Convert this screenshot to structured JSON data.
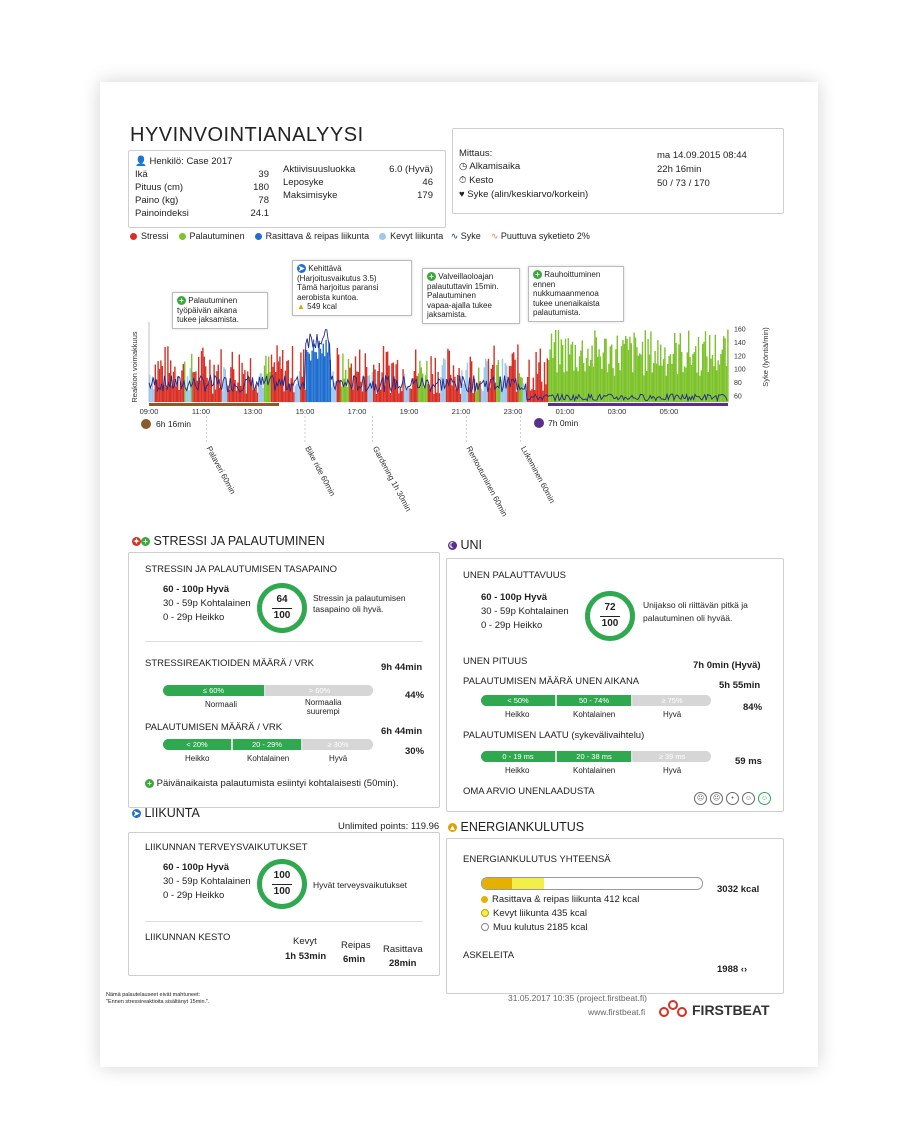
{
  "title": "HYVINVOINTIANALYYSI",
  "person": {
    "name_label": "Henkilö: Case 2017",
    "rows": [
      {
        "label": "Ikä",
        "value": "39"
      },
      {
        "label": "Pituus (cm)",
        "value": "180"
      },
      {
        "label": "Paino (kg)",
        "value": "78"
      },
      {
        "label": "Painoindeksi",
        "value": "24.1"
      }
    ],
    "rows2": [
      {
        "label": "Aktiivisuusluokka",
        "value": "6.0 (Hyvä)"
      },
      {
        "label": "Leposyke",
        "value": "46"
      },
      {
        "label": "Maksimisyke",
        "value": "179"
      }
    ]
  },
  "measurement": {
    "header": "Mittaus:",
    "labels": [
      "Alkamisaika",
      "Kesto",
      "Syke (alin/keskiarvo/korkein)"
    ],
    "values": [
      "ma 14.09.2015 08:44",
      "22h 16min",
      "50 / 73 / 170"
    ]
  },
  "legend": {
    "stress": "Stressi",
    "recovery": "Palautuminen",
    "heavy": "Rasittava & reipas liikunta",
    "light": "Kevyt liikunta",
    "hr": "Syke",
    "missing": "Puuttuva syketieto 2%"
  },
  "colors": {
    "stress": "#d93025",
    "recovery": "#7cc22a",
    "heavy": "#1f6fd1",
    "light": "#9cc7ef",
    "hr": "#1f2a8a",
    "good": "#2fa84f",
    "sleep": "#5a2f8c"
  },
  "callouts": [
    {
      "lines": [
        "Palautuminen",
        "työpäivän aikana",
        "tukee jaksamista."
      ]
    },
    {
      "lines": [
        "Kehittävä",
        "(Harjoitusvaikutus 3.5)",
        "Tämä harjoitus paransi",
        "aerobista kuntoa.",
        "549 kcal"
      ]
    },
    {
      "lines": [
        "Valveillaoloajan",
        "palaututtavin 15min.",
        "Palautuminen",
        "vapaa-ajalla tukee",
        "jaksamista."
      ]
    },
    {
      "lines": [
        "Rauhoittuminen",
        "ennen",
        "nukkumaanmenoa",
        "tukee unenaikaista",
        "palautumista."
      ]
    }
  ],
  "chart_data": {
    "type": "bar",
    "ylabel_left": "Reaktion voimakkuus",
    "ylabel_right": "Syke (lyöntiä/min)",
    "y_right_ticks": [
      60,
      80,
      100,
      120,
      140,
      160
    ],
    "x_ticks": [
      "09:00",
      "11:00",
      "13:00",
      "15:00",
      "17:00",
      "19:00",
      "21:00",
      "23:00",
      "01:00",
      "03:00",
      "05:00"
    ],
    "work_duration": "6h 16min",
    "sleep_duration": "7h 0min",
    "events": [
      "Palaveri 60min",
      "Bike ride 60min",
      "Gardening 1h 30min",
      "Rentoutuminen 60min",
      "Lukeminen 60min"
    ],
    "segments": [
      {
        "state": "stress",
        "from": "09:00",
        "to": "15:00"
      },
      {
        "state": "heavy",
        "from": "15:00",
        "to": "16:00"
      },
      {
        "state": "stress",
        "from": "16:00",
        "to": "21:00"
      },
      {
        "state": "recovery",
        "from": "21:00",
        "to": "23:30"
      },
      {
        "state": "recovery",
        "from": "23:30",
        "to": "07:00"
      }
    ]
  },
  "stress": {
    "section": "STRESSI JA PALAUTUMINEN",
    "balance_title": "STRESSIN JA PALAUTUMISEN TASAPAINO",
    "scale": [
      "60 - 100p Hyvä",
      "30 - 59p Kohtalainen",
      "0 - 29p Heikko"
    ],
    "score": "64",
    "max": "100",
    "score_text": [
      "Stressin ja palautumisen",
      "tasapaino oli hyvä."
    ],
    "reactions_title": "STRESSIREAKTIOIDEN MÄÄRÄ / VRK",
    "reactions_value": "9h 44min",
    "reactions_pct": "44%",
    "reactions_segs": [
      "≤ 60%",
      "> 60%"
    ],
    "reactions_labels": [
      "Normaali",
      "Normaalia",
      "suurempi"
    ],
    "recovery_title": "PALAUTUMISEN MÄÄRÄ / VRK",
    "recovery_value": "6h 44min",
    "recovery_pct": "30%",
    "recovery_segs": [
      "< 20%",
      "20 - 29%",
      "≥ 30%"
    ],
    "recovery_labels": [
      "Heikko",
      "Kohtalainen",
      "Hyvä"
    ],
    "note": "Päivänaikaista palautumista esiintyi kohtalaisesti (50min)."
  },
  "sleep": {
    "section": "UNI",
    "restore_title": "UNEN PALAUTTAVUUS",
    "scale": [
      "60 - 100p Hyvä",
      "30 - 59p Kohtalainen",
      "0 - 29p Heikko"
    ],
    "score": "72",
    "max": "100",
    "score_text": [
      "Unijakso oli riittävän pitkä ja",
      "palautuminen oli hyvää."
    ],
    "length_title": "UNEN PITUUS",
    "length_value": "7h 0min (Hyvä)",
    "amount_title": "PALAUTUMISEN MÄÄRÄ UNEN AIKANA",
    "amount_value": "5h 55min",
    "amount_pct": "84%",
    "amount_segs": [
      "< 50%",
      "50 - 74%",
      "≥ 75%"
    ],
    "labels": [
      "Heikko",
      "Kohtalainen",
      "Hyvä"
    ],
    "quality_title": "PALAUTUMISEN LAATU (sykevälivaihtelu)",
    "quality_value": "59 ms",
    "quality_segs": [
      "0 - 19 ms",
      "20 - 38 ms",
      "≥ 39 ms"
    ],
    "self_title": "OMA ARVIO UNENLAADUSTA"
  },
  "exercise": {
    "section": "LIIKUNTA",
    "points": "Unlimited points: 119.96",
    "health_title": "LIIKUNNAN TERVEYSVAIKUTUKSET",
    "scale": [
      "60 - 100p Hyvä",
      "30 - 59p Kohtalainen",
      "0 - 29p Heikko"
    ],
    "score": "100",
    "max": "100",
    "score_text": "Hyvät terveysvaikutukset",
    "duration_title": "LIIKUNNAN KESTO",
    "cols": [
      {
        "label": "Kevyt",
        "value": "1h 53min"
      },
      {
        "label": "Reipas",
        "value": "6min"
      },
      {
        "label": "Rasittava",
        "value": "28min"
      }
    ]
  },
  "energy": {
    "section": "ENERGIANKULUTUS",
    "total_title": "ENERGIANKULUTUS YHTEENSÄ",
    "total_value": "3032 kcal",
    "items": [
      "Rasittava & reipas liikunta 412 kcal",
      "Kevyt liikunta 435 kcal",
      "Muu kulutus 2185 kcal"
    ],
    "steps_title": "ASKELEITA",
    "steps_value": "1988"
  },
  "footer": {
    "note": [
      "Nämä palautelauseet eivät mahtuneet:",
      "\"Ennen stressireaktioita sisältänyt 15min.\"."
    ],
    "date": "31.05.2017 10:35 (project.firstbeat.fi)",
    "url": "www.firstbeat.fi",
    "brand": "FIRSTBEAT"
  }
}
